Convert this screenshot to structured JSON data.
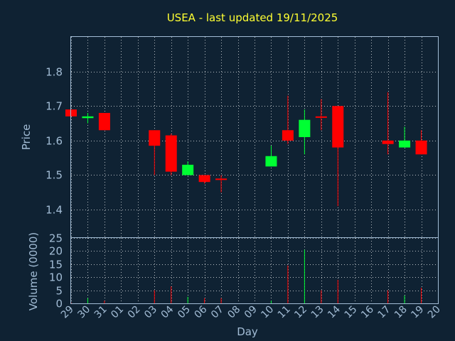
{
  "chart_data": {
    "type": "candlestick",
    "title": "USEA - last updated 19/11/2025",
    "xlabel": "Day",
    "x": [
      "29",
      "30",
      "31",
      "01",
      "02",
      "03",
      "04",
      "05",
      "06",
      "07",
      "08",
      "09",
      "10",
      "11",
      "12",
      "13",
      "14",
      "15",
      "16",
      "17",
      "18",
      "19",
      "20"
    ],
    "price_panel": {
      "ylabel": "Price",
      "ylim": [
        1.32,
        1.9
      ],
      "yticks": [
        "1.4",
        "1.5",
        "1.6",
        "1.7",
        "1.8"
      ],
      "candles": [
        {
          "day": "29",
          "open": 1.69,
          "high": 1.69,
          "low": 1.67,
          "close": 1.67
        },
        {
          "day": "30",
          "open": 1.665,
          "high": 1.68,
          "low": 1.65,
          "close": 1.67
        },
        {
          "day": "31",
          "open": 1.68,
          "high": 1.68,
          "low": 1.63,
          "close": 1.63
        },
        {
          "day": "03",
          "open": 1.63,
          "high": 1.63,
          "low": 1.5,
          "close": 1.585
        },
        {
          "day": "04",
          "open": 1.615,
          "high": 1.62,
          "low": 1.5,
          "close": 1.51
        },
        {
          "day": "05",
          "open": 1.5,
          "high": 1.54,
          "low": 1.5,
          "close": 1.53
        },
        {
          "day": "06",
          "open": 1.5,
          "high": 1.5,
          "low": 1.475,
          "close": 1.48
        },
        {
          "day": "07",
          "open": 1.49,
          "high": 1.5,
          "low": 1.45,
          "close": 1.49
        },
        {
          "day": "10",
          "open": 1.525,
          "high": 1.585,
          "low": 1.525,
          "close": 1.555
        },
        {
          "day": "11",
          "open": 1.63,
          "high": 1.73,
          "low": 1.59,
          "close": 1.6
        },
        {
          "day": "12",
          "open": 1.61,
          "high": 1.69,
          "low": 1.56,
          "close": 1.66
        },
        {
          "day": "13",
          "open": 1.67,
          "high": 1.72,
          "low": 1.63,
          "close": 1.67
        },
        {
          "day": "14",
          "open": 1.7,
          "high": 1.7,
          "low": 1.41,
          "close": 1.58
        },
        {
          "day": "17",
          "open": 1.6,
          "high": 1.74,
          "low": 1.56,
          "close": 1.59
        },
        {
          "day": "18",
          "open": 1.58,
          "high": 1.64,
          "low": 1.58,
          "close": 1.6
        },
        {
          "day": "19",
          "open": 1.6,
          "high": 1.63,
          "low": 1.56,
          "close": 1.56
        }
      ]
    },
    "volume_panel": {
      "ylabel": "Volume (0000)",
      "ylim": [
        0,
        25
      ],
      "yticks": [
        "0",
        "5",
        "10",
        "15",
        "20",
        "25"
      ],
      "bars": [
        {
          "day": "29",
          "value": 0.3
        },
        {
          "day": "30",
          "value": 2.0
        },
        {
          "day": "31",
          "value": 1.0
        },
        {
          "day": "03",
          "value": 5.0
        },
        {
          "day": "04",
          "value": 6.5
        },
        {
          "day": "05",
          "value": 2.5
        },
        {
          "day": "06",
          "value": 2.0
        },
        {
          "day": "07",
          "value": 2.0
        },
        {
          "day": "10",
          "value": 1.0
        },
        {
          "day": "11",
          "value": 14.5
        },
        {
          "day": "12",
          "value": 20.5
        },
        {
          "day": "13",
          "value": 5.0
        },
        {
          "day": "14",
          "value": 9.0
        },
        {
          "day": "17",
          "value": 5.0
        },
        {
          "day": "18",
          "value": 3.0
        },
        {
          "day": "19",
          "value": 6.0
        }
      ]
    },
    "colors": {
      "up": "#00ff33",
      "down": "#ff0000",
      "background": "#0f2233",
      "grid": "#ffffff",
      "text": "#a3bdd6",
      "title": "#ffff33"
    },
    "grid": true
  }
}
